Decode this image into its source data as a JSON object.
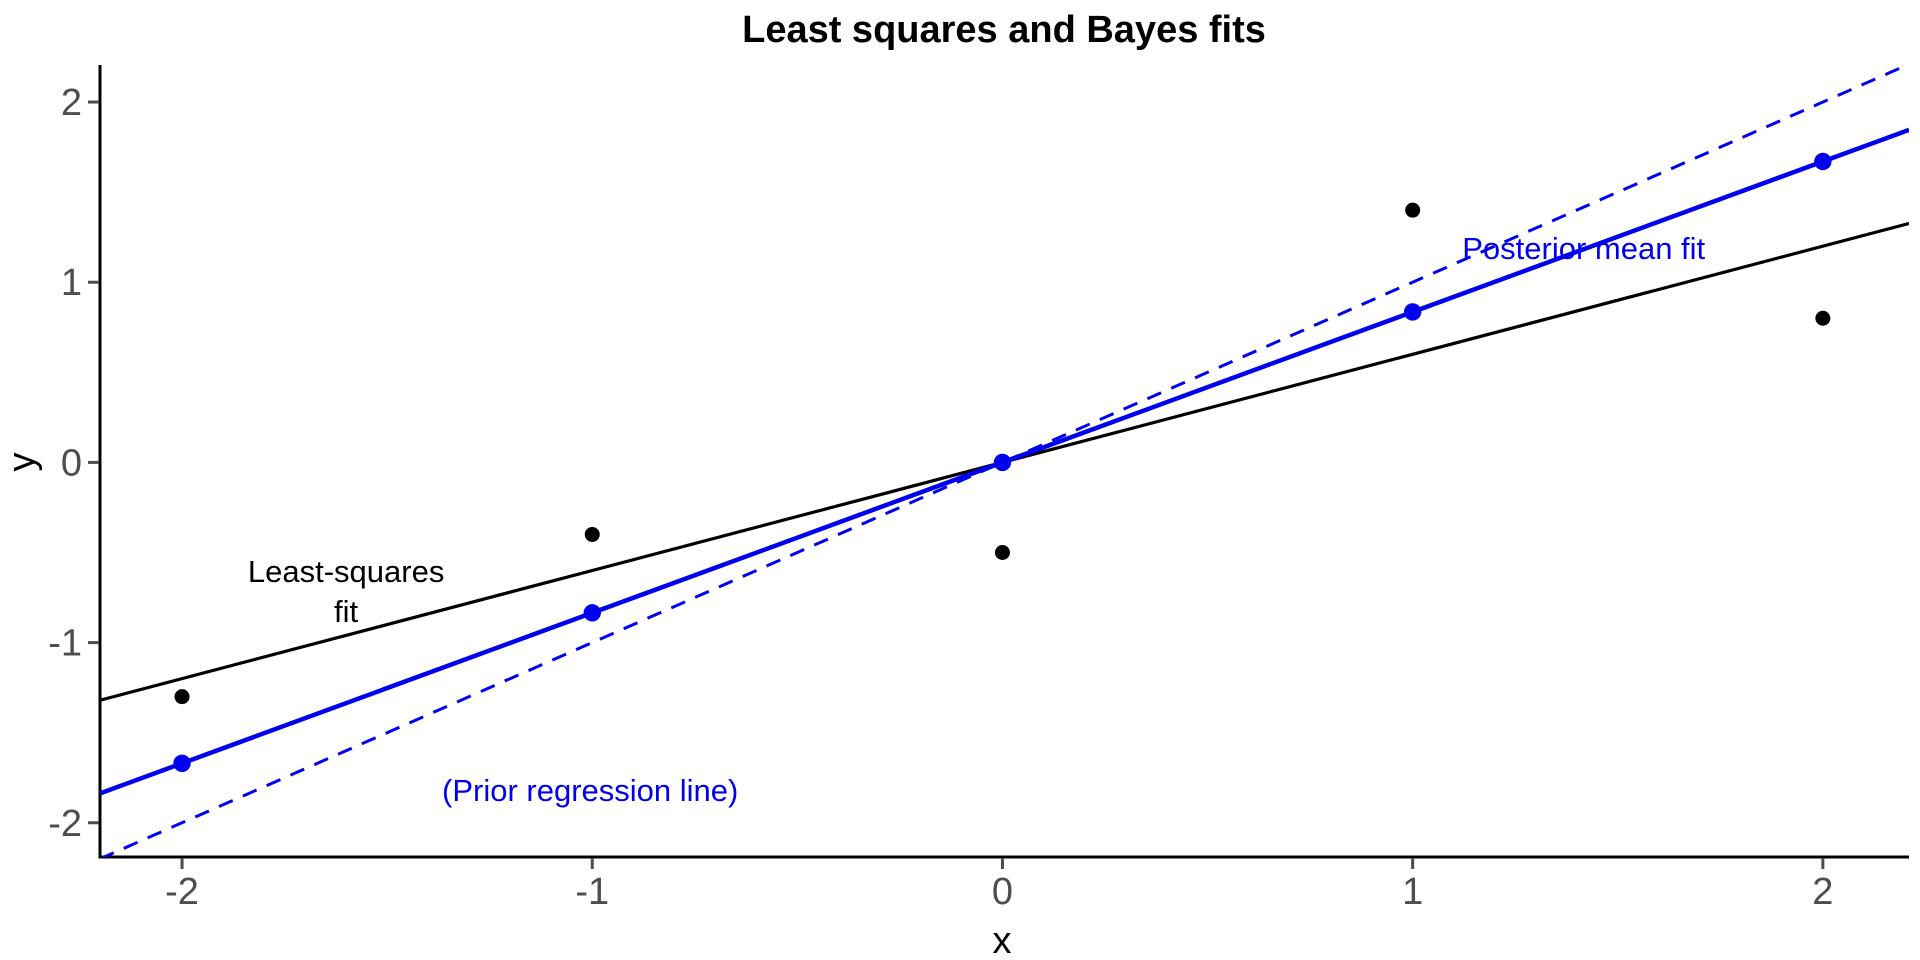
{
  "chart_data": {
    "type": "scatter",
    "title": "Least squares and Bayes fits",
    "xlabel": "x",
    "ylabel": "y",
    "xlim": [
      -2.2,
      2.21
    ],
    "ylim": [
      -2.19,
      2.2
    ],
    "x_ticks": [
      -2,
      -1,
      0,
      1,
      2
    ],
    "y_ticks": [
      -2,
      -1,
      0,
      1,
      2
    ],
    "grid": false,
    "legend": "none (direct line annotations)",
    "series": [
      {
        "name": "observed-data-points",
        "type": "points",
        "color": "#000000",
        "radius": 7.5,
        "points": [
          [
            -2,
            -1.3
          ],
          [
            -1,
            -0.4
          ],
          [
            0,
            -0.5
          ],
          [
            1,
            1.4
          ],
          [
            2,
            0.8
          ]
        ]
      },
      {
        "name": "posterior-fitted-points",
        "type": "points",
        "color": "#0000EE",
        "radius": 8.7,
        "points": [
          [
            -2,
            -1.67
          ],
          [
            -1,
            -0.835
          ],
          [
            0,
            0
          ],
          [
            1,
            0.835
          ],
          [
            2,
            1.67
          ]
        ]
      }
    ],
    "lines": [
      {
        "name": "least-squares-line",
        "slope": 0.6,
        "intercept": 0,
        "color": "#000000",
        "dash": "",
        "width": 3.2
      },
      {
        "name": "posterior-mean-line",
        "slope": 0.835,
        "intercept": 0,
        "color": "#0000EE",
        "dash": "",
        "width": 4.5
      },
      {
        "name": "prior-regression-line",
        "slope": 1,
        "intercept": 0,
        "color": "#0000EE",
        "dash": "15 11",
        "width": 3
      }
    ],
    "annotations": [
      {
        "name": "annotation-least-squares-fit",
        "lines": [
          "Least-squares",
          "fit"
        ],
        "x": -1.6,
        "y": -0.665,
        "color": "#000000"
      },
      {
        "name": "annotation-posterior-mean-fit",
        "lines": [
          "Posterior mean fit"
        ],
        "x": 1.417,
        "y": 1.13,
        "color": "#0000EE"
      },
      {
        "name": "annotation-prior-regression-line",
        "lines": [
          "(Prior regression line)"
        ],
        "x": -1.005,
        "y": -1.878,
        "color": "#0000EE"
      }
    ],
    "colors": {
      "accent_blue": "#0000EE",
      "axis_line": "#000000",
      "tick_mark": "#4d4d4d",
      "tick_label": "#4d4d4d",
      "background": "#ffffff"
    }
  }
}
